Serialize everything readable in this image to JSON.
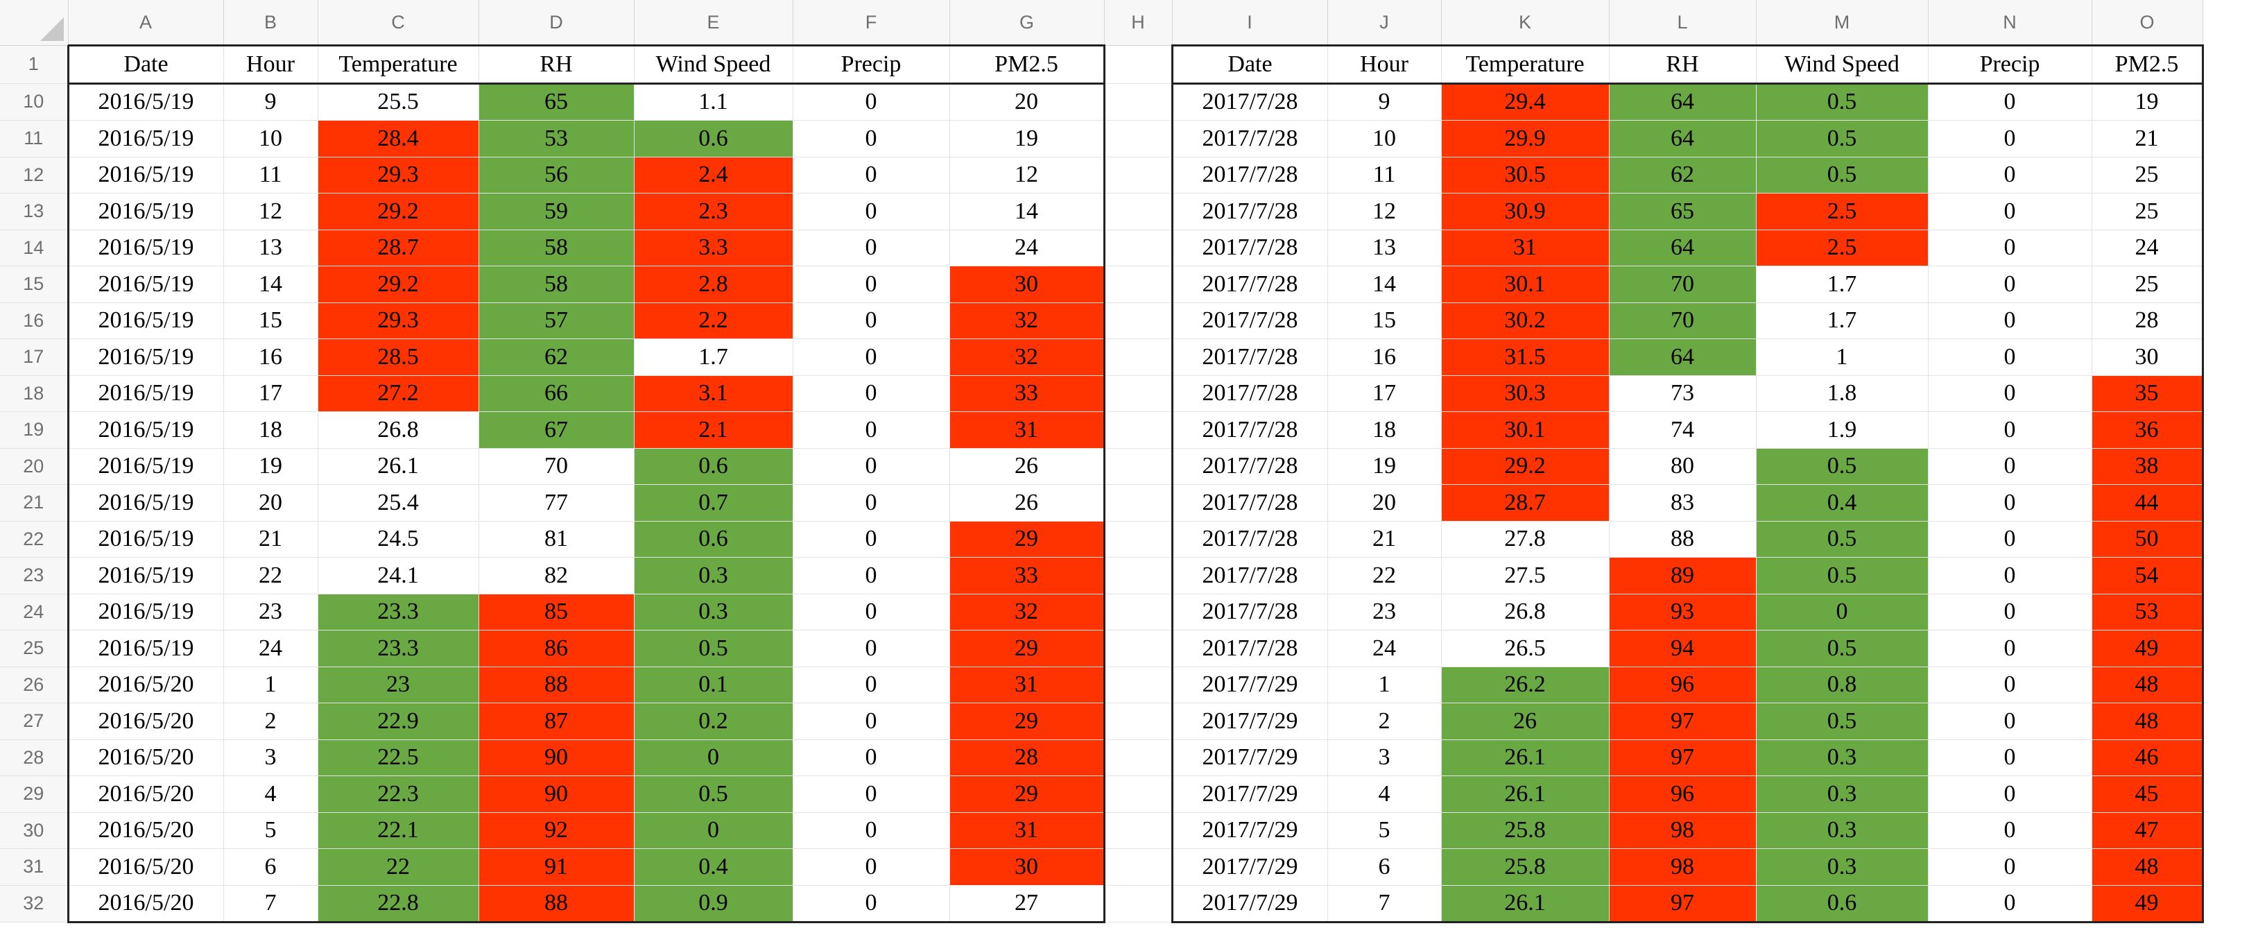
{
  "columns_left": [
    "A",
    "B",
    "C",
    "D",
    "E",
    "F",
    "G"
  ],
  "gap_column": "H",
  "columns_right": [
    "I",
    "J",
    "K",
    "L",
    "M",
    "N",
    "O"
  ],
  "header_row_number": "1",
  "headers": [
    "Date",
    "Hour",
    "Temperature",
    "RH",
    "Wind Speed",
    "Precip",
    "PM2.5"
  ],
  "colors": {
    "red": "#ff3300",
    "green": "#6aa844",
    "white": "#ffffff"
  },
  "rows": [
    {
      "n": "10",
      "left": [
        "2016/5/19",
        "9",
        "25.5",
        "65",
        "1.1",
        "0",
        "20"
      ],
      "left_fill": [
        "",
        "",
        "w",
        "g",
        "w",
        "",
        ""
      ],
      "right": [
        "2017/7/28",
        "9",
        "29.4",
        "64",
        "0.5",
        "0",
        "19"
      ],
      "right_fill": [
        "",
        "",
        "r",
        "g",
        "g",
        "",
        ""
      ]
    },
    {
      "n": "11",
      "left": [
        "2016/5/19",
        "10",
        "28.4",
        "53",
        "0.6",
        "0",
        "19"
      ],
      "left_fill": [
        "",
        "",
        "r",
        "g",
        "g",
        "",
        ""
      ],
      "right": [
        "2017/7/28",
        "10",
        "29.9",
        "64",
        "0.5",
        "0",
        "21"
      ],
      "right_fill": [
        "",
        "",
        "r",
        "g",
        "g",
        "",
        ""
      ]
    },
    {
      "n": "12",
      "left": [
        "2016/5/19",
        "11",
        "29.3",
        "56",
        "2.4",
        "0",
        "12"
      ],
      "left_fill": [
        "",
        "",
        "r",
        "g",
        "r",
        "",
        ""
      ],
      "right": [
        "2017/7/28",
        "11",
        "30.5",
        "62",
        "0.5",
        "0",
        "25"
      ],
      "right_fill": [
        "",
        "",
        "r",
        "g",
        "g",
        "",
        ""
      ]
    },
    {
      "n": "13",
      "left": [
        "2016/5/19",
        "12",
        "29.2",
        "59",
        "2.3",
        "0",
        "14"
      ],
      "left_fill": [
        "",
        "",
        "r",
        "g",
        "r",
        "",
        ""
      ],
      "right": [
        "2017/7/28",
        "12",
        "30.9",
        "65",
        "2.5",
        "0",
        "25"
      ],
      "right_fill": [
        "",
        "",
        "r",
        "g",
        "r",
        "",
        ""
      ]
    },
    {
      "n": "14",
      "left": [
        "2016/5/19",
        "13",
        "28.7",
        "58",
        "3.3",
        "0",
        "24"
      ],
      "left_fill": [
        "",
        "",
        "r",
        "g",
        "r",
        "",
        ""
      ],
      "right": [
        "2017/7/28",
        "13",
        "31",
        "64",
        "2.5",
        "0",
        "24"
      ],
      "right_fill": [
        "",
        "",
        "r",
        "g",
        "r",
        "",
        ""
      ]
    },
    {
      "n": "15",
      "left": [
        "2016/5/19",
        "14",
        "29.2",
        "58",
        "2.8",
        "0",
        "30"
      ],
      "left_fill": [
        "",
        "",
        "r",
        "g",
        "r",
        "",
        "r"
      ],
      "right": [
        "2017/7/28",
        "14",
        "30.1",
        "70",
        "1.7",
        "0",
        "25"
      ],
      "right_fill": [
        "",
        "",
        "r",
        "g",
        "w",
        "",
        ""
      ]
    },
    {
      "n": "16",
      "left": [
        "2016/5/19",
        "15",
        "29.3",
        "57",
        "2.2",
        "0",
        "32"
      ],
      "left_fill": [
        "",
        "",
        "r",
        "g",
        "r",
        "",
        "r"
      ],
      "right": [
        "2017/7/28",
        "15",
        "30.2",
        "70",
        "1.7",
        "0",
        "28"
      ],
      "right_fill": [
        "",
        "",
        "r",
        "g",
        "w",
        "",
        ""
      ]
    },
    {
      "n": "17",
      "left": [
        "2016/5/19",
        "16",
        "28.5",
        "62",
        "1.7",
        "0",
        "32"
      ],
      "left_fill": [
        "",
        "",
        "r",
        "g",
        "w",
        "",
        "r"
      ],
      "right": [
        "2017/7/28",
        "16",
        "31.5",
        "64",
        "1",
        "0",
        "30"
      ],
      "right_fill": [
        "",
        "",
        "r",
        "g",
        "w",
        "",
        ""
      ]
    },
    {
      "n": "18",
      "left": [
        "2016/5/19",
        "17",
        "27.2",
        "66",
        "3.1",
        "0",
        "33"
      ],
      "left_fill": [
        "",
        "",
        "r",
        "g",
        "r",
        "",
        "r"
      ],
      "right": [
        "2017/7/28",
        "17",
        "30.3",
        "73",
        "1.8",
        "0",
        "35"
      ],
      "right_fill": [
        "",
        "",
        "r",
        "w",
        "w",
        "",
        "r"
      ]
    },
    {
      "n": "19",
      "left": [
        "2016/5/19",
        "18",
        "26.8",
        "67",
        "2.1",
        "0",
        "31"
      ],
      "left_fill": [
        "",
        "",
        "w",
        "g",
        "r",
        "",
        "r"
      ],
      "right": [
        "2017/7/28",
        "18",
        "30.1",
        "74",
        "1.9",
        "0",
        "36"
      ],
      "right_fill": [
        "",
        "",
        "r",
        "w",
        "w",
        "",
        "r"
      ]
    },
    {
      "n": "20",
      "left": [
        "2016/5/19",
        "19",
        "26.1",
        "70",
        "0.6",
        "0",
        "26"
      ],
      "left_fill": [
        "",
        "",
        "w",
        "w",
        "g",
        "",
        ""
      ],
      "right": [
        "2017/7/28",
        "19",
        "29.2",
        "80",
        "0.5",
        "0",
        "38"
      ],
      "right_fill": [
        "",
        "",
        "r",
        "w",
        "g",
        "",
        "r"
      ]
    },
    {
      "n": "21",
      "left": [
        "2016/5/19",
        "20",
        "25.4",
        "77",
        "0.7",
        "0",
        "26"
      ],
      "left_fill": [
        "",
        "",
        "w",
        "w",
        "g",
        "",
        ""
      ],
      "right": [
        "2017/7/28",
        "20",
        "28.7",
        "83",
        "0.4",
        "0",
        "44"
      ],
      "right_fill": [
        "",
        "",
        "r",
        "w",
        "g",
        "",
        "r"
      ]
    },
    {
      "n": "22",
      "left": [
        "2016/5/19",
        "21",
        "24.5",
        "81",
        "0.6",
        "0",
        "29"
      ],
      "left_fill": [
        "",
        "",
        "w",
        "w",
        "g",
        "",
        "r"
      ],
      "right": [
        "2017/7/28",
        "21",
        "27.8",
        "88",
        "0.5",
        "0",
        "50"
      ],
      "right_fill": [
        "",
        "",
        "w",
        "w",
        "g",
        "",
        "r"
      ]
    },
    {
      "n": "23",
      "left": [
        "2016/5/19",
        "22",
        "24.1",
        "82",
        "0.3",
        "0",
        "33"
      ],
      "left_fill": [
        "",
        "",
        "w",
        "w",
        "g",
        "",
        "r"
      ],
      "right": [
        "2017/7/28",
        "22",
        "27.5",
        "89",
        "0.5",
        "0",
        "54"
      ],
      "right_fill": [
        "",
        "",
        "w",
        "r",
        "g",
        "",
        "r"
      ]
    },
    {
      "n": "24",
      "left": [
        "2016/5/19",
        "23",
        "23.3",
        "85",
        "0.3",
        "0",
        "32"
      ],
      "left_fill": [
        "",
        "",
        "g",
        "r",
        "g",
        "",
        "r"
      ],
      "right": [
        "2017/7/28",
        "23",
        "26.8",
        "93",
        "0",
        "0",
        "53"
      ],
      "right_fill": [
        "",
        "",
        "w",
        "r",
        "g",
        "",
        "r"
      ]
    },
    {
      "n": "25",
      "left": [
        "2016/5/19",
        "24",
        "23.3",
        "86",
        "0.5",
        "0",
        "29"
      ],
      "left_fill": [
        "",
        "",
        "g",
        "r",
        "g",
        "",
        "r"
      ],
      "right": [
        "2017/7/28",
        "24",
        "26.5",
        "94",
        "0.5",
        "0",
        "49"
      ],
      "right_fill": [
        "",
        "",
        "w",
        "r",
        "g",
        "",
        "r"
      ]
    },
    {
      "n": "26",
      "left": [
        "2016/5/20",
        "1",
        "23",
        "88",
        "0.1",
        "0",
        "31"
      ],
      "left_fill": [
        "",
        "",
        "g",
        "r",
        "g",
        "",
        "r"
      ],
      "right": [
        "2017/7/29",
        "1",
        "26.2",
        "96",
        "0.8",
        "0",
        "48"
      ],
      "right_fill": [
        "",
        "",
        "g",
        "r",
        "g",
        "",
        "r"
      ]
    },
    {
      "n": "27",
      "left": [
        "2016/5/20",
        "2",
        "22.9",
        "87",
        "0.2",
        "0",
        "29"
      ],
      "left_fill": [
        "",
        "",
        "g",
        "r",
        "g",
        "",
        "r"
      ],
      "right": [
        "2017/7/29",
        "2",
        "26",
        "97",
        "0.5",
        "0",
        "48"
      ],
      "right_fill": [
        "",
        "",
        "g",
        "r",
        "g",
        "",
        "r"
      ]
    },
    {
      "n": "28",
      "left": [
        "2016/5/20",
        "3",
        "22.5",
        "90",
        "0",
        "0",
        "28"
      ],
      "left_fill": [
        "",
        "",
        "g",
        "r",
        "g",
        "",
        "r"
      ],
      "right": [
        "2017/7/29",
        "3",
        "26.1",
        "97",
        "0.3",
        "0",
        "46"
      ],
      "right_fill": [
        "",
        "",
        "g",
        "r",
        "g",
        "",
        "r"
      ]
    },
    {
      "n": "29",
      "left": [
        "2016/5/20",
        "4",
        "22.3",
        "90",
        "0.5",
        "0",
        "29"
      ],
      "left_fill": [
        "",
        "",
        "g",
        "r",
        "g",
        "",
        "r"
      ],
      "right": [
        "2017/7/29",
        "4",
        "26.1",
        "96",
        "0.3",
        "0",
        "45"
      ],
      "right_fill": [
        "",
        "",
        "g",
        "r",
        "g",
        "",
        "r"
      ]
    },
    {
      "n": "30",
      "left": [
        "2016/5/20",
        "5",
        "22.1",
        "92",
        "0",
        "0",
        "31"
      ],
      "left_fill": [
        "",
        "",
        "g",
        "r",
        "g",
        "",
        "r"
      ],
      "right": [
        "2017/7/29",
        "5",
        "25.8",
        "98",
        "0.3",
        "0",
        "47"
      ],
      "right_fill": [
        "",
        "",
        "g",
        "r",
        "g",
        "",
        "r"
      ]
    },
    {
      "n": "31",
      "left": [
        "2016/5/20",
        "6",
        "22",
        "91",
        "0.4",
        "0",
        "30"
      ],
      "left_fill": [
        "",
        "",
        "g",
        "r",
        "g",
        "",
        "r"
      ],
      "right": [
        "2017/7/29",
        "6",
        "25.8",
        "98",
        "0.3",
        "0",
        "48"
      ],
      "right_fill": [
        "",
        "",
        "g",
        "r",
        "g",
        "",
        "r"
      ]
    },
    {
      "n": "32",
      "left": [
        "2016/5/20",
        "7",
        "22.8",
        "88",
        "0.9",
        "0",
        "27"
      ],
      "left_fill": [
        "",
        "",
        "g",
        "r",
        "g",
        "",
        ""
      ],
      "right": [
        "2017/7/29",
        "7",
        "26.1",
        "97",
        "0.6",
        "0",
        "49"
      ],
      "right_fill": [
        "",
        "",
        "g",
        "r",
        "g",
        "",
        "r"
      ]
    }
  ]
}
